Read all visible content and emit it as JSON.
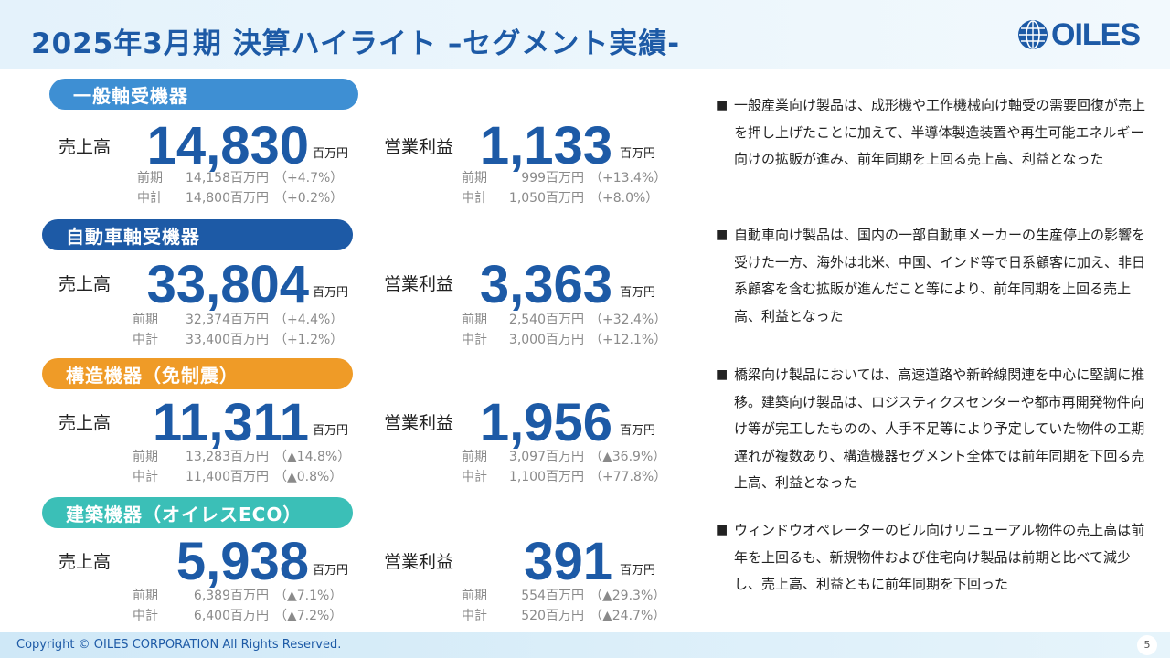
{
  "title": "2025年3月期 決算ハイライト –セグメント実績-",
  "logo": {
    "text": "OILES",
    "color": "#1d5aa6"
  },
  "labels": {
    "sales": "売上高",
    "op": "営業利益",
    "unit": "百万円",
    "prev": "前期",
    "plan": "中計"
  },
  "segments": [
    {
      "name": "一般軸受機器",
      "color": "#3e8fd3",
      "sales": {
        "value": "14,830",
        "prev_val": "14,158百万円",
        "prev_pct": "（+4.7%）",
        "plan_val": "14,800百万円",
        "plan_pct": "（+0.2%）"
      },
      "op": {
        "value": "1,133",
        "prev_val": "999百万円",
        "prev_pct": "（+13.4%）",
        "plan_val": "1,050百万円",
        "plan_pct": "（+8.0%）"
      }
    },
    {
      "name": "自動車軸受機器",
      "color": "#1d5aa6",
      "sales": {
        "value": "33,804",
        "prev_val": "32,374百万円",
        "prev_pct": "（+4.4%）",
        "plan_val": "33,400百万円",
        "plan_pct": "（+1.2%）"
      },
      "op": {
        "value": "3,363",
        "prev_val": "2,540百万円",
        "prev_pct": "（+32.4%）",
        "plan_val": "3,000百万円",
        "plan_pct": "（+12.1%）"
      }
    },
    {
      "name": "構造機器（免制震）",
      "color": "#ef9b27",
      "sales": {
        "value": "11,311",
        "prev_val": "13,283百万円",
        "prev_pct": "（▲14.8%）",
        "plan_val": "11,400百万円",
        "plan_pct": "（▲0.8%）"
      },
      "op": {
        "value": "1,956",
        "prev_val": "3,097百万円",
        "prev_pct": "（▲36.9%）",
        "plan_val": "1,100百万円",
        "plan_pct": "（+77.8%）"
      }
    },
    {
      "name": "建築機器（オイレスECO）",
      "color": "#3bbfb7",
      "sales": {
        "value": "5,938",
        "prev_val": "6,389百万円",
        "prev_pct": "（▲7.1%）",
        "plan_val": "6,400百万円",
        "plan_pct": "（▲7.2%）"
      },
      "op": {
        "value": "391",
        "prev_val": "554百万円",
        "prev_pct": "（▲29.3%）",
        "plan_val": "520百万円",
        "plan_pct": "（▲24.7%）"
      }
    }
  ],
  "notes": [
    "一般産業向け製品は、成形機や工作機械向け軸受の需要回復が売上を押し上げたことに加えて、半導体製造装置や再生可能エネルギー向けの拡販が進み、前年同期を上回る売上高、利益となった",
    "自動車向け製品は、国内の一部自動車メーカーの生産停止の影響を受けた一方、海外は北米、中国、インド等で日系顧客に加え、非日系顧客を含む拡販が進んだこと等により、前年同期を上回る売上高、利益となった",
    "橋梁向け製品においては、高速道路や新幹線関連を中心に堅調に推移。建築向け製品は、ロジスティクスセンターや都市再開発物件向け等が完工したものの、人手不足等により予定していた物件の工期遅れが複数あり、構造機器セグメント全体では前年同期を下回る売上高、利益となった",
    "ウィンドウオペレーターのビル向けリニューアル物件の売上高は前年を上回るも、新規物件および住宅向け製品は前期と比べて減少し、売上高、利益ともに前年同期を下回った"
  ],
  "bullet": "■",
  "footer": {
    "copyright": "Copyright © OILES CORPORATION All Rights Reserved.",
    "page": "5"
  }
}
